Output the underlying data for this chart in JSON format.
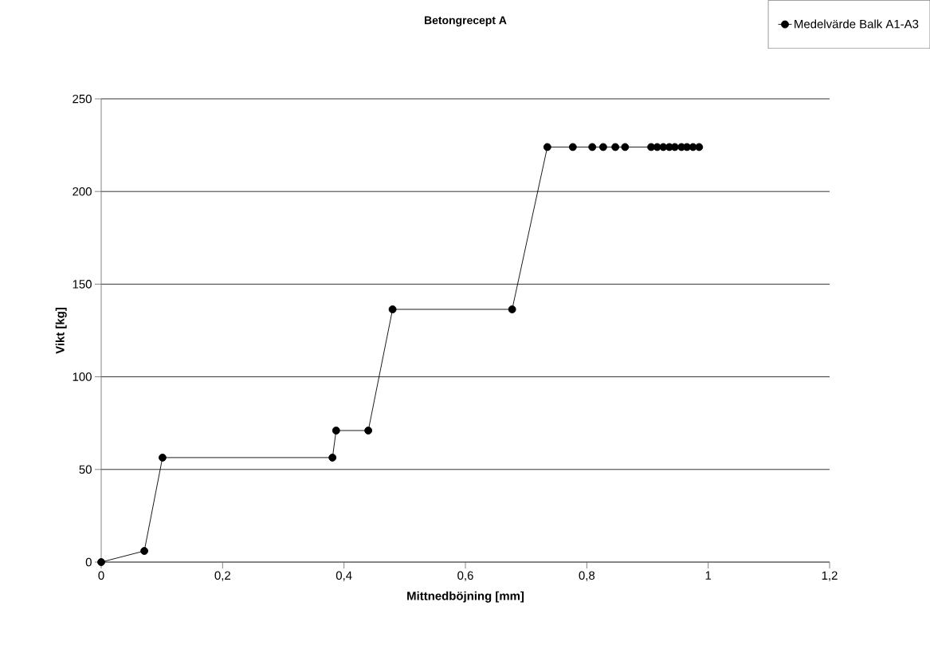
{
  "chart_data": {
    "type": "line",
    "title": "Betongrecept A",
    "xlabel": "Mittnedböjning [mm]",
    "ylabel": "Vikt [kg]",
    "x": [
      0,
      0.071,
      0.101,
      0.381,
      0.387,
      0.44,
      0.48,
      0.677,
      0.735,
      0.777,
      0.809,
      0.827,
      0.847,
      0.863,
      0.906,
      0.916,
      0.926,
      0.936,
      0.945,
      0.956,
      0.965,
      0.975,
      0.985
    ],
    "series": [
      {
        "name": "Medelvärde Balk A1-A3",
        "color": "#000000",
        "values": [
          0,
          6,
          56.4,
          56.4,
          71,
          71,
          136.4,
          136.4,
          224,
          224,
          224,
          224,
          224,
          224,
          224,
          224,
          224,
          224,
          224,
          224,
          224,
          224,
          224
        ]
      }
    ],
    "xlim": [
      0,
      1.2
    ],
    "ylim": [
      0,
      250
    ],
    "xticks": [
      0,
      {
        "value": 0.2,
        "label": "0,2"
      },
      {
        "value": 0.4,
        "label": "0,4"
      },
      {
        "value": 0.6,
        "label": "0,6"
      },
      {
        "value": 0.8,
        "label": "0,8"
      },
      1,
      {
        "value": 1.2,
        "label": "1,2"
      }
    ],
    "yticks": [
      0,
      50,
      100,
      150,
      200,
      250
    ],
    "grid": "y",
    "legend": "top right",
    "marker": "circle",
    "line_style": "solid"
  }
}
